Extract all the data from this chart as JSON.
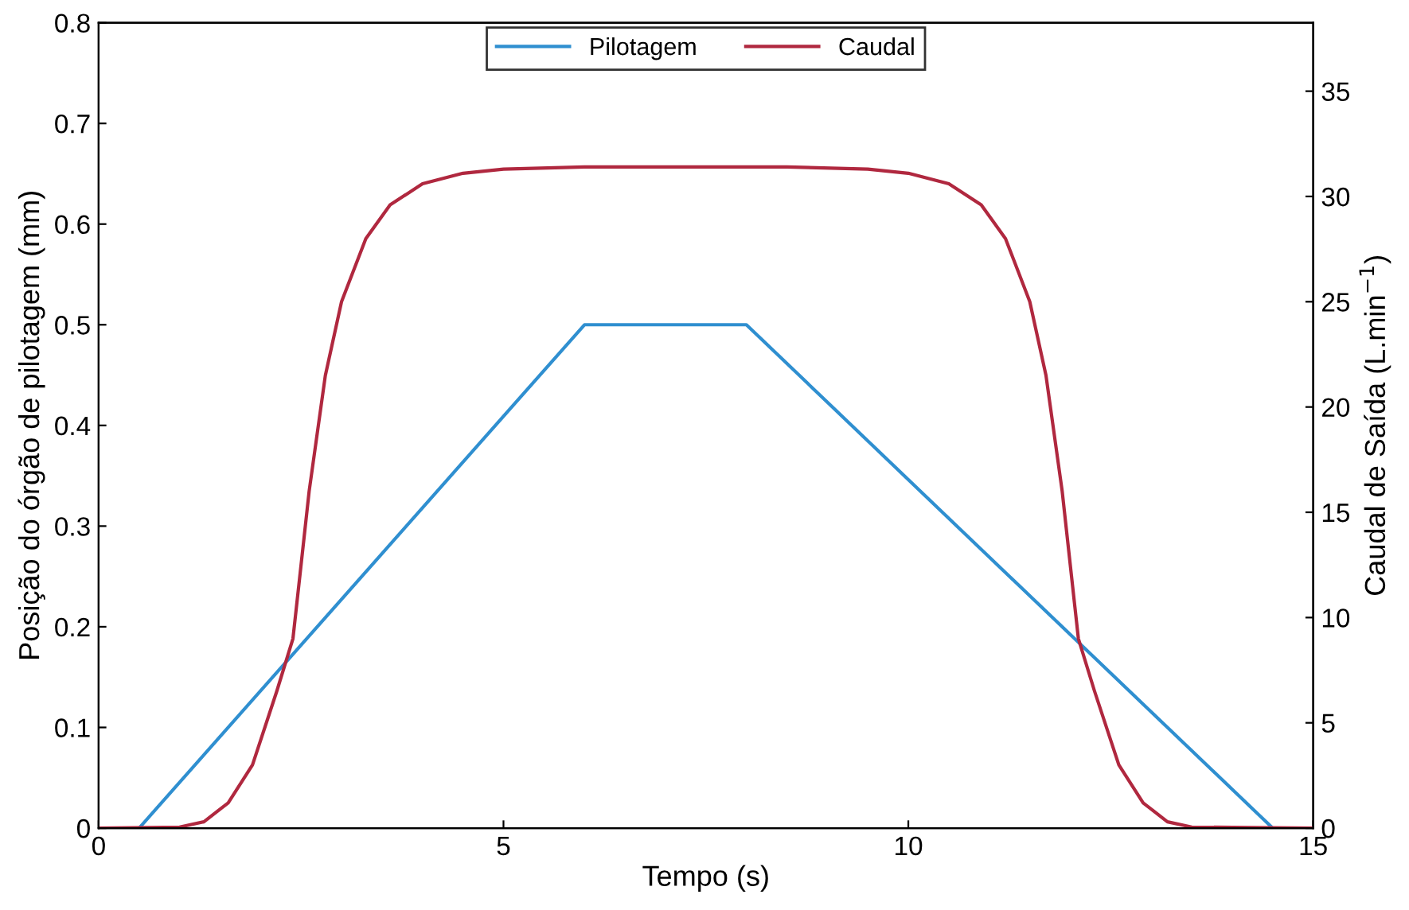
{
  "chart_data": {
    "type": "line",
    "xlabel": "Tempo (s)",
    "ylabel": "Posição do órgão de pilotagem (mm)",
    "y2label": "Caudal de Saída (L.min$^{−1}$)",
    "xlim": [
      0,
      15
    ],
    "xticks": [
      0,
      5,
      10,
      15
    ],
    "ylim": [
      0,
      0.8
    ],
    "yticks": [
      0,
      0.1,
      0.2,
      0.3,
      0.4,
      0.5,
      0.6,
      0.7,
      0.8
    ],
    "y2lim": [
      0,
      38.25
    ],
    "y2ticks": [
      0,
      5,
      10,
      15,
      20,
      25,
      30,
      35
    ],
    "grid": false,
    "legend": "top",
    "marker": "none",
    "line_style": "solid",
    "series": [
      {
        "name": "Pilotagem",
        "color": "#2f8fd0",
        "x": [
          0,
          0.5,
          6,
          8,
          14.5,
          15
        ],
        "values": [
          0,
          0,
          0.5,
          0.5,
          0,
          0
        ]
      },
      {
        "name": "Caudal",
        "color": "#b0283f",
        "axis": "y2",
        "x": [
          0,
          1.0,
          1.3,
          1.6,
          1.9,
          2.2,
          2.4,
          2.5,
          2.6,
          2.8,
          3.0,
          3.3,
          3.6,
          4.0,
          4.5,
          5.0,
          6.0,
          8.5,
          9.5,
          10.0,
          10.5,
          10.9,
          11.2,
          11.5,
          11.7,
          11.9,
          12.0,
          12.1,
          12.3,
          12.6,
          12.9,
          13.2,
          13.5,
          15
        ],
        "values": [
          0,
          0.05,
          0.3,
          1.2,
          3.0,
          6.5,
          9,
          12.5,
          16,
          21.5,
          25,
          28,
          29.6,
          30.6,
          31.1,
          31.3,
          31.4,
          31.4,
          31.3,
          31.1,
          30.6,
          29.6,
          28,
          25,
          21.5,
          16,
          12.5,
          9,
          6.5,
          3.0,
          1.2,
          0.3,
          0.05,
          0
        ]
      }
    ]
  }
}
